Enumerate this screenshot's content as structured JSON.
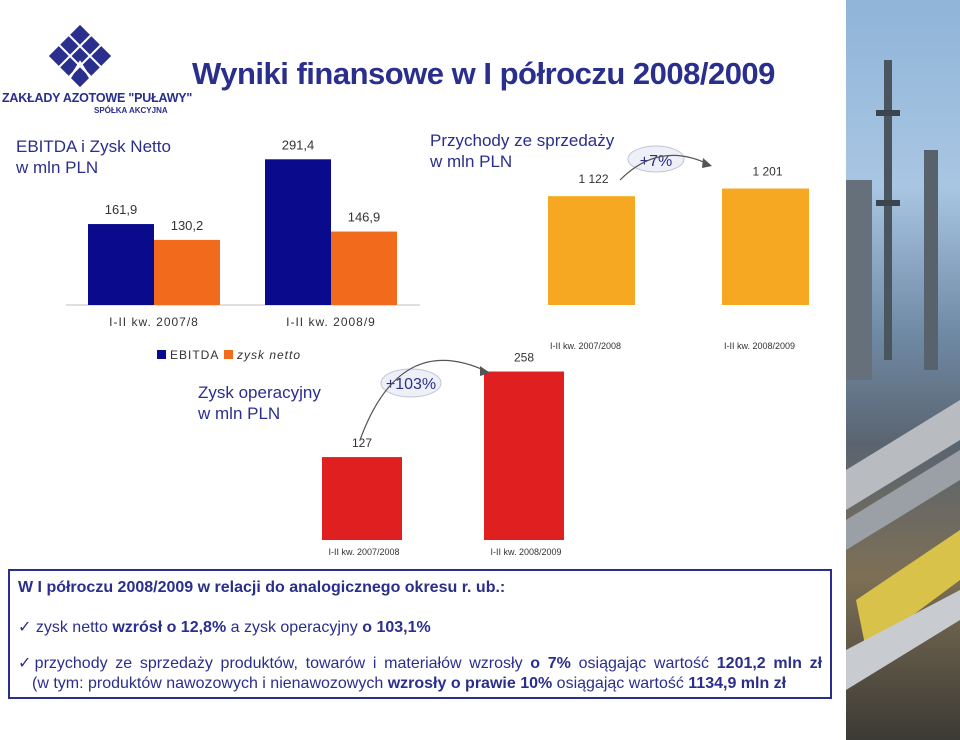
{
  "title": "Wyniki finansowe w I półroczu 2008/2009",
  "logo": {
    "company": "ZAKŁADY AZOTOWE \"PUŁAWY\"",
    "subtitle": "SPÓŁKA AKCYJNA"
  },
  "colors": {
    "navy": "#0a0a8c",
    "orange": "#f26b1d",
    "amber": "#f7a823",
    "red": "#e02020",
    "text": "#2a2e8c"
  },
  "chart_data": [
    {
      "id": "ebitda-net",
      "type": "bar",
      "title": "EBITDA i Zysk Netto\nw mln PLN",
      "categories": [
        "I-II kw. 2007/8",
        "I-II kw. 2008/9"
      ],
      "series": [
        {
          "name": "EBITDA",
          "values": [
            161.9,
            291.4
          ],
          "labels": [
            "161,9",
            "291,4"
          ]
        },
        {
          "name": "zysk netto",
          "values": [
            130.2,
            146.9
          ],
          "labels": [
            "130,2",
            "146,9"
          ]
        }
      ],
      "legend": "bottom"
    },
    {
      "id": "revenue",
      "type": "bar",
      "title": "Przychody ze sprzedaży\nw mln PLN",
      "categories": [
        "I-II kw. 2007/2008",
        "I-II kw. 2008/2009"
      ],
      "values": [
        1122,
        1201
      ],
      "labels": [
        "1 122",
        "1 201"
      ],
      "annotation": "+7%"
    },
    {
      "id": "operating-profit",
      "type": "bar",
      "title": "Zysk operacyjny\nw mln PLN",
      "categories": [
        "I-II kw. 2007/2008",
        "I-II kw. 2008/2009"
      ],
      "values": [
        127,
        258
      ],
      "labels": [
        "127",
        "258"
      ],
      "annotation": "+103%"
    }
  ],
  "summary": {
    "title": "W I półroczu 2008/2009 w relacji do analogicznego okresu r. ub.:",
    "bullet1": {
      "a": "zysk netto ",
      "b": "wzrósł o 12,8%",
      "c": " a zysk operacyjny ",
      "d": "o 103,1%"
    },
    "bullet2": {
      "a": "przychody ze sprzedaży produktów, towarów i materiałów wzrosły ",
      "b": "o 7%",
      "c": " osiągając wartość ",
      "d": "1201,2 mln zł"
    },
    "bullet3": {
      "a": "(w tym: produktów nawozowych i nienawozowych ",
      "b": "wzrosły o prawie 10%",
      "c": " osiągając wartość ",
      "d": "1134,9 mln zł"
    }
  }
}
